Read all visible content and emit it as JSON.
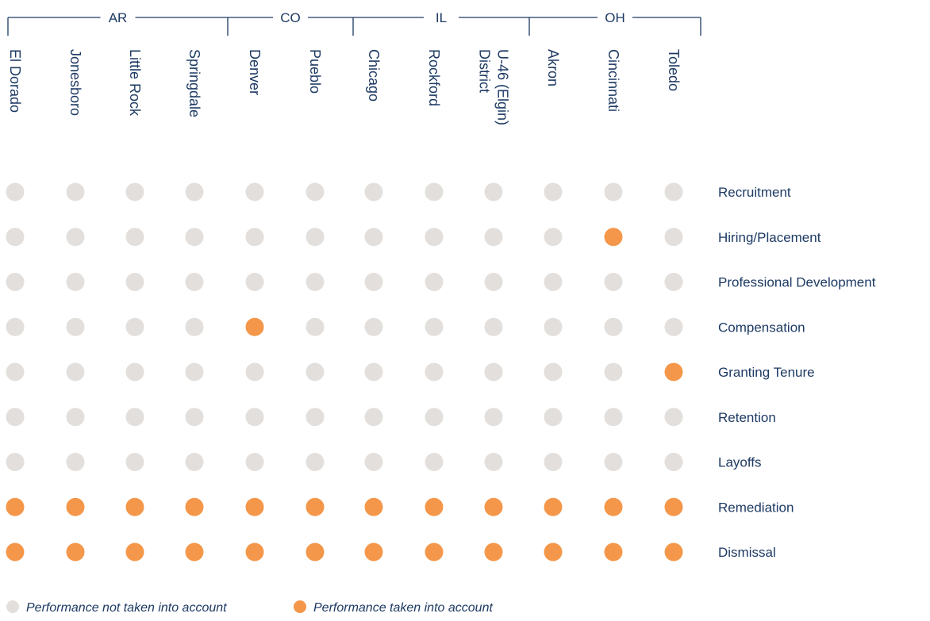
{
  "chart_data": {
    "type": "dot-matrix",
    "states": [
      {
        "name": "AR",
        "cities": [
          "El Dorado",
          "Jonesboro",
          "Little Rock",
          "Springdale"
        ]
      },
      {
        "name": "CO",
        "cities": [
          "Denver",
          "Pueblo"
        ]
      },
      {
        "name": "IL",
        "cities": [
          "Chicago",
          "Rockford",
          "District U-46 (Elgin)"
        ]
      },
      {
        "name": "OH",
        "cities": [
          "Akron",
          "Cincinnati",
          "Toledo"
        ]
      }
    ],
    "city_label_lines": [
      [
        "El Dorado"
      ],
      [
        "Jonesboro"
      ],
      [
        "Little Rock"
      ],
      [
        "Springdale"
      ],
      [
        "Denver"
      ],
      [
        "Pueblo"
      ],
      [
        "Chicago"
      ],
      [
        "Rockford"
      ],
      [
        "District",
        "U-46 (Elgin)"
      ],
      [
        "Akron"
      ],
      [
        "Cincinnati"
      ],
      [
        "Toledo"
      ]
    ],
    "rows": [
      "Recruitment",
      "Hiring/Placement",
      "Professional Development",
      "Compensation",
      "Granting Tenure",
      "Retention",
      "Layoffs",
      "Remediation",
      "Dismissal"
    ],
    "matrix": [
      [
        0,
        0,
        0,
        0,
        0,
        0,
        0,
        0,
        0,
        0,
        0,
        0
      ],
      [
        0,
        0,
        0,
        0,
        0,
        0,
        0,
        0,
        0,
        0,
        1,
        0
      ],
      [
        0,
        0,
        0,
        0,
        0,
        0,
        0,
        0,
        0,
        0,
        0,
        0
      ],
      [
        0,
        0,
        0,
        0,
        1,
        0,
        0,
        0,
        0,
        0,
        0,
        0
      ],
      [
        0,
        0,
        0,
        0,
        0,
        0,
        0,
        0,
        0,
        0,
        0,
        1
      ],
      [
        0,
        0,
        0,
        0,
        0,
        0,
        0,
        0,
        0,
        0,
        0,
        0
      ],
      [
        0,
        0,
        0,
        0,
        0,
        0,
        0,
        0,
        0,
        0,
        0,
        0
      ],
      [
        1,
        1,
        1,
        1,
        1,
        1,
        1,
        1,
        1,
        1,
        1,
        1
      ],
      [
        1,
        1,
        1,
        1,
        1,
        1,
        1,
        1,
        1,
        1,
        1,
        1
      ]
    ],
    "legend": [
      {
        "label": "Performance not taken into account",
        "value": 0
      },
      {
        "label": "Performance taken into account",
        "value": 1
      }
    ],
    "colors": {
      "not_taken": "#e2dfdc",
      "taken": "#f4974a",
      "text": "#1d3a63"
    }
  }
}
